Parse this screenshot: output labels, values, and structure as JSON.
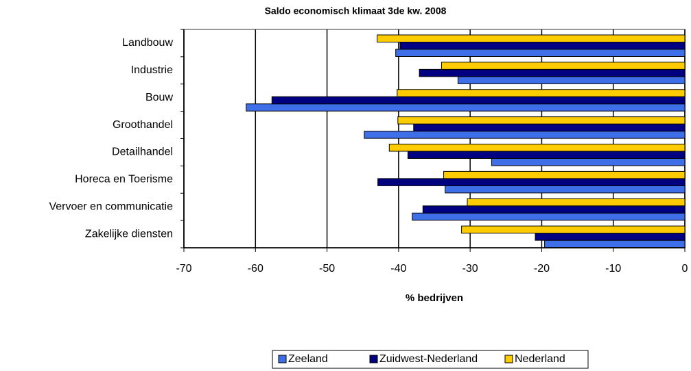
{
  "chart_data": {
    "type": "hbar",
    "title": "Saldo economisch klimaat 3de kw. 2008",
    "xlabel": "% bedrijven",
    "categories": [
      "Landbouw",
      "Industrie",
      "Bouw",
      "Groothandel",
      "Detailhandel",
      "Horeca en Toerisme",
      "Vervoer en communicatie",
      "Zakelijke diensten"
    ],
    "series": [
      {
        "name": "Zeeland",
        "color": "#3f6fe8",
        "values": [
          -40.4,
          -31.7,
          -61.3,
          -44.8,
          -27.0,
          -33.5,
          -38.1,
          -19.6
        ]
      },
      {
        "name": "Zuidwest-Nederland",
        "color": "#000080",
        "values": [
          -39.8,
          -37.1,
          -57.7,
          -37.9,
          -38.7,
          -42.9,
          -36.6,
          -20.9
        ]
      },
      {
        "name": "Nederland",
        "color": "#ffcc00",
        "values": [
          -43.0,
          -34.0,
          -40.2,
          -40.1,
          -41.3,
          -33.7,
          -30.4,
          -31.2
        ]
      }
    ],
    "xlim": [
      -70,
      0
    ],
    "xticks": [
      -70,
      -60,
      -50,
      -40,
      -30,
      -20,
      -10,
      0
    ],
    "grid": true,
    "legend": "bottom"
  }
}
